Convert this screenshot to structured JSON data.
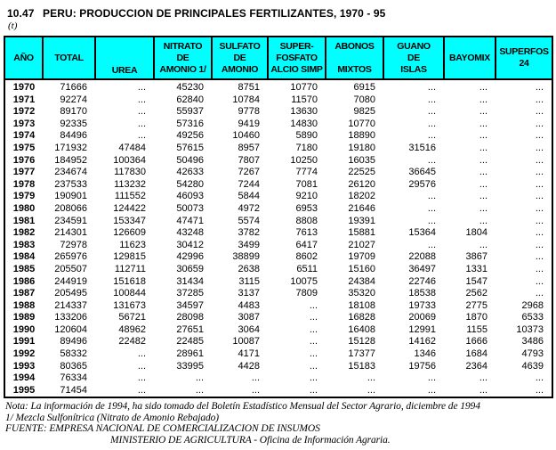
{
  "colors": {
    "header_bg": "#00ffff",
    "border": "#000000"
  },
  "header": {
    "number": "10.47",
    "title": "PERU: PRODUCCION DE PRINCIPALES FERTILIZANTES, 1970 - 95",
    "unit": "(t)"
  },
  "table": {
    "columns": [
      {
        "label": "AÑO",
        "align": "mid"
      },
      {
        "label": "TOTAL",
        "align": "mid"
      },
      {
        "label": "UREA",
        "align": "bottom"
      },
      {
        "label": "NITRATO\nDE\nAMONIO 1/",
        "align": "mid"
      },
      {
        "label": "SULFATO\nDE\nAMONIO",
        "align": "mid"
      },
      {
        "label": "SUPER-\nFOSFATO\nALCIO SIMP",
        "align": "mid"
      },
      {
        "label": "ABONOS\n\nMIXTOS",
        "align": "mid"
      },
      {
        "label": "GUANO\nDE\nISLAS",
        "align": "mid"
      },
      {
        "label": "BAYOMIX",
        "align": "mid"
      },
      {
        "label": "SUPERFOS\n24",
        "align": "mid"
      }
    ],
    "rows": [
      {
        "year": "1970",
        "values": [
          "71666",
          "...",
          "45230",
          "8751",
          "10770",
          "6915",
          "...",
          "...",
          "..."
        ]
      },
      {
        "year": "1971",
        "values": [
          "92274",
          "...",
          "62840",
          "10784",
          "11570",
          "7080",
          "...",
          "...",
          "..."
        ]
      },
      {
        "year": "1972",
        "values": [
          "89170",
          "...",
          "55937",
          "9778",
          "13630",
          "9825",
          "...",
          "...",
          "..."
        ]
      },
      {
        "year": "1973",
        "values": [
          "92335",
          "...",
          "57316",
          "9419",
          "14830",
          "10770",
          "...",
          "...",
          "..."
        ]
      },
      {
        "year": "1974",
        "values": [
          "84496",
          "...",
          "49256",
          "10460",
          "5890",
          "18890",
          "...",
          "...",
          "..."
        ]
      },
      {
        "year": "1975",
        "values": [
          "171932",
          "47484",
          "57615",
          "8957",
          "7180",
          "19180",
          "31516",
          "...",
          "..."
        ]
      },
      {
        "year": "1976",
        "values": [
          "184952",
          "100364",
          "50496",
          "7807",
          "10250",
          "16035",
          "...",
          "...",
          "..."
        ]
      },
      {
        "year": "1977",
        "values": [
          "234674",
          "117830",
          "42633",
          "7267",
          "7774",
          "22525",
          "36645",
          "...",
          "..."
        ]
      },
      {
        "year": "1978",
        "values": [
          "237533",
          "113232",
          "54280",
          "7244",
          "7081",
          "26120",
          "29576",
          "...",
          "..."
        ]
      },
      {
        "year": "1979",
        "values": [
          "190901",
          "111552",
          "46093",
          "5844",
          "9210",
          "18202",
          "...",
          "...",
          "..."
        ]
      },
      {
        "year": "1980",
        "values": [
          "208066",
          "124422",
          "50073",
          "4972",
          "6953",
          "21646",
          "...",
          "...",
          "..."
        ]
      },
      {
        "year": "1981",
        "values": [
          "234591",
          "153347",
          "47471",
          "5574",
          "8808",
          "19391",
          "...",
          "...",
          "..."
        ]
      },
      {
        "year": "1982",
        "values": [
          "214301",
          "126609",
          "43248",
          "3782",
          "7613",
          "15881",
          "15364",
          "1804",
          "..."
        ]
      },
      {
        "year": "1983",
        "values": [
          "72978",
          "11623",
          "30412",
          "3499",
          "6417",
          "21027",
          "...",
          "...",
          "..."
        ]
      },
      {
        "year": "1984",
        "values": [
          "265976",
          "129815",
          "42996",
          "38899",
          "8602",
          "19709",
          "22088",
          "3867",
          "..."
        ]
      },
      {
        "year": "1985",
        "values": [
          "205507",
          "112711",
          "30659",
          "2638",
          "6511",
          "15160",
          "36497",
          "1331",
          "..."
        ]
      },
      {
        "year": "1986",
        "values": [
          "244919",
          "151618",
          "31434",
          "3115",
          "10075",
          "24384",
          "22746",
          "1547",
          "..."
        ]
      },
      {
        "year": "1987",
        "values": [
          "205495",
          "100844",
          "37285",
          "3137",
          "7809",
          "35320",
          "18538",
          "2562",
          "..."
        ]
      },
      {
        "year": "1988",
        "values": [
          "214337",
          "131673",
          "34597",
          "4483",
          "...",
          "18108",
          "19733",
          "2775",
          "2968"
        ]
      },
      {
        "year": "1989",
        "values": [
          "133206",
          "56721",
          "28098",
          "3087",
          "...",
          "16828",
          "20069",
          "1870",
          "6533"
        ]
      },
      {
        "year": "1990",
        "values": [
          "120604",
          "48962",
          "27651",
          "3064",
          "...",
          "16408",
          "12991",
          "1155",
          "10373"
        ]
      },
      {
        "year": "1991",
        "values": [
          "89496",
          "22482",
          "22485",
          "10087",
          "...",
          "15128",
          "14162",
          "1666",
          "3486"
        ]
      },
      {
        "year": "1992",
        "values": [
          "58332",
          "...",
          "28961",
          "4171",
          "...",
          "17377",
          "1346",
          "1684",
          "4793"
        ]
      },
      {
        "year": "1993",
        "values": [
          "80365",
          "...",
          "33995",
          "4428",
          "...",
          "15183",
          "19756",
          "2364",
          "4639"
        ]
      },
      {
        "year": "1994",
        "values": [
          "76334",
          "...",
          "...",
          "...",
          "...",
          "...",
          "...",
          "...",
          "..."
        ]
      },
      {
        "year": "1995",
        "values": [
          "71454",
          "...",
          "...",
          "...",
          "...",
          "...",
          "...",
          "...",
          "..."
        ]
      }
    ]
  },
  "footnotes": {
    "nota": "Nota: La información de 1994, ha sido tomado del Boletín Estadístico Mensual del Sector Agrario, diciembre de 1994",
    "ref1": "1/  Mezcla Sulfonítrica (Nitrato de Amonio Rebajado)",
    "fuente": "FUENTE: EMPRESA NACIONAL DE COMERCIALIZACION DE INSUMOS",
    "fuente2": "MINISTERIO DE AGRICULTURA - Oficina de Información Agraria."
  }
}
